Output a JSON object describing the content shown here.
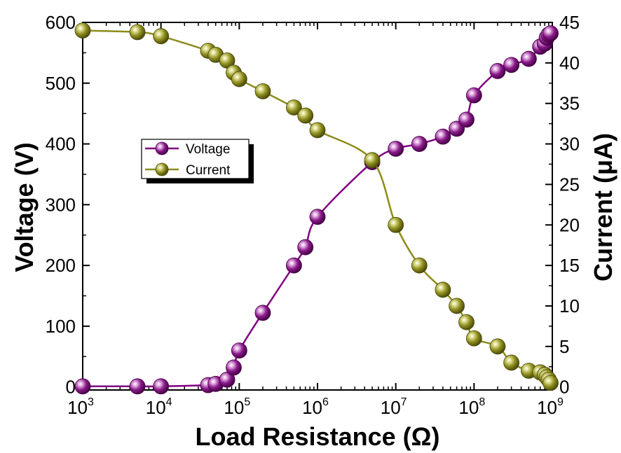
{
  "chart_data": {
    "type": "line",
    "xlabel": "Load Resistance (Ω)",
    "ylabel": "Voltage (V)",
    "y2label": "Current (μA)",
    "xscale": "log",
    "xlim": [
      1000,
      1000000000
    ],
    "ylim": [
      -5,
      600
    ],
    "y2lim": [
      -0.375,
      45
    ],
    "x_ticks": [
      {
        "base": "10",
        "exp": "3"
      },
      {
        "base": "10",
        "exp": "4"
      },
      {
        "base": "10",
        "exp": "5"
      },
      {
        "base": "10",
        "exp": "6"
      },
      {
        "base": "10",
        "exp": "7"
      },
      {
        "base": "10",
        "exp": "8"
      },
      {
        "base": "10",
        "exp": "9"
      }
    ],
    "y_ticks": [
      "0",
      "100",
      "200",
      "300",
      "400",
      "500",
      "600"
    ],
    "y2_ticks": [
      "0",
      "5",
      "10",
      "15",
      "20",
      "25",
      "30",
      "35",
      "40",
      "45"
    ],
    "legend_position": "middle-left",
    "series": [
      {
        "name": "Voltage",
        "axis": "left",
        "color": "#800080",
        "x": [
          1000,
          5000,
          10000,
          40000,
          50000,
          70000,
          85000,
          100000,
          200000,
          500000,
          700000,
          1000000,
          5000000,
          10000000,
          20000000,
          40000000,
          60000000,
          80000000,
          100000000,
          200000000,
          300000000,
          500000000,
          700000000,
          800000000,
          850000000,
          900000000,
          950000000
        ],
        "values": [
          1,
          1,
          1,
          3,
          5,
          12,
          32,
          60,
          122,
          200,
          230,
          280,
          370,
          392,
          400,
          412,
          425,
          440,
          480,
          520,
          530,
          540,
          560,
          565,
          575,
          580,
          582
        ]
      },
      {
        "name": "Current",
        "axis": "right",
        "color": "#8c8c1c",
        "x": [
          1000,
          5000,
          10000,
          40000,
          50000,
          70000,
          85000,
          100000,
          200000,
          500000,
          700000,
          1000000,
          5000000,
          10000000,
          20000000,
          40000000,
          60000000,
          80000000,
          100000000,
          200000000,
          300000000,
          500000000,
          700000000,
          800000000,
          850000000,
          900000000,
          950000000
        ],
        "values": [
          44,
          43.8,
          43.3,
          41.5,
          41,
          40.3,
          38.8,
          38,
          36.5,
          34.5,
          33.5,
          31.7,
          28,
          20,
          15,
          12,
          10,
          8,
          6,
          5,
          3,
          2,
          1.8,
          1.5,
          1.2,
          0.9,
          0.5
        ]
      }
    ]
  }
}
